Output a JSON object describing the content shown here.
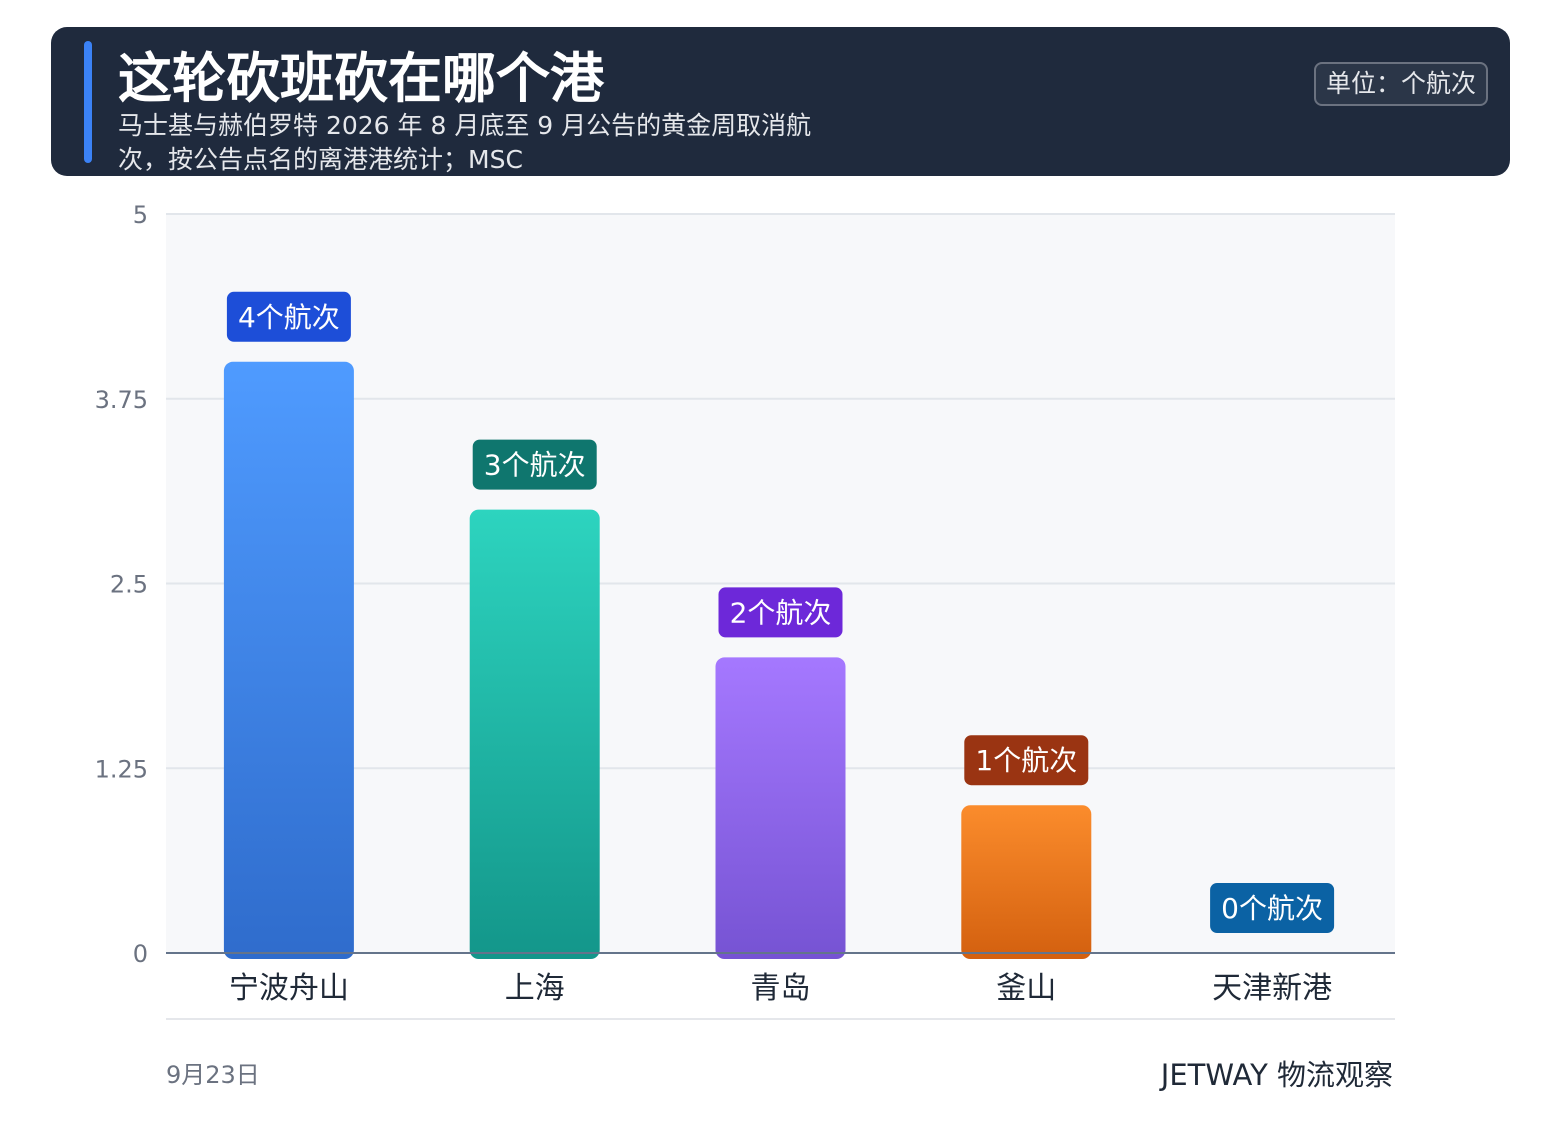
{
  "header": {
    "title": "这轮砍班砍在哪个港",
    "subtitle": "马士基与赫伯罗特 2026 年 8 月底至 9 月公告的黄金周取消航次，按公告点名的离港港统计；MSC",
    "unit": "单位：个航次"
  },
  "footer": {
    "date": "9月23日",
    "brand": "JETWAY 物流观察"
  },
  "chart_data": {
    "type": "bar",
    "categories": [
      "宁波舟山",
      "上海",
      "青岛",
      "釜山",
      "天津新港"
    ],
    "values": [
      4,
      3,
      2,
      1,
      0
    ],
    "data_labels": [
      "4个航次",
      "3个航次",
      "2个航次",
      "1个航次",
      "0个航次"
    ],
    "ylim": [
      0,
      5
    ],
    "yticks": [
      "0",
      "1.25",
      "2.5",
      "3.75",
      "5"
    ],
    "grid": true,
    "colors": {
      "bar_top": [
        "#4f9bff",
        "#2dd4bf",
        "#a578ff",
        "#fb8c2c",
        "#60a5fa"
      ],
      "bar_bottom": [
        "#2f6ccc",
        "#13968a",
        "#7653d3",
        "#d3600f",
        "#3b82f6"
      ],
      "label_bg": [
        "#1d4ed8",
        "#0f766e",
        "#6d28d9",
        "#9a3412",
        "#0b62a4"
      ]
    }
  }
}
